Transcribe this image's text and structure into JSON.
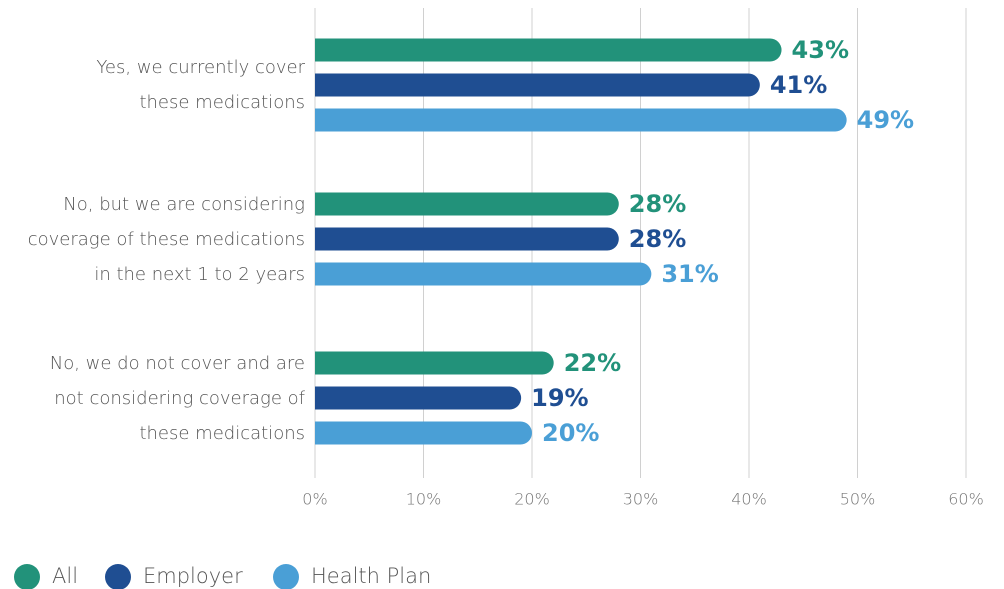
{
  "chart_data": {
    "type": "bar",
    "orientation": "horizontal",
    "categories": [
      "Yes, we currently cover\nthese medications",
      "No, but we are considering\ncoverage of these medications\nin the next 1 to 2 years",
      "No, we do not cover and are\nnot considering coverage of\nthese medications"
    ],
    "series": [
      {
        "name": "All",
        "color": "#22927a",
        "values": [
          43,
          28,
          22
        ],
        "value_labels": [
          "43%",
          "28%",
          "22%"
        ]
      },
      {
        "name": "Employer",
        "color": "#1f4e92",
        "values": [
          41,
          28,
          19
        ],
        "value_labels": [
          "41%",
          "28%",
          "19%"
        ]
      },
      {
        "name": "Health Plan",
        "color": "#4a9fd6",
        "values": [
          49,
          31,
          20
        ],
        "value_labels": [
          "49%",
          "31%",
          "20%"
        ]
      }
    ],
    "xlim": [
      0,
      60
    ],
    "xticks": [
      {
        "value": 0,
        "label": "0%"
      },
      {
        "value": 10,
        "label": "10%"
      },
      {
        "value": 20,
        "label": "20%"
      },
      {
        "value": 30,
        "label": "30%"
      },
      {
        "value": 40,
        "label": "40%"
      },
      {
        "value": 50,
        "label": "50%"
      },
      {
        "value": 60,
        "label": "60%"
      }
    ],
    "grid": true,
    "legend": "bottom-left"
  }
}
